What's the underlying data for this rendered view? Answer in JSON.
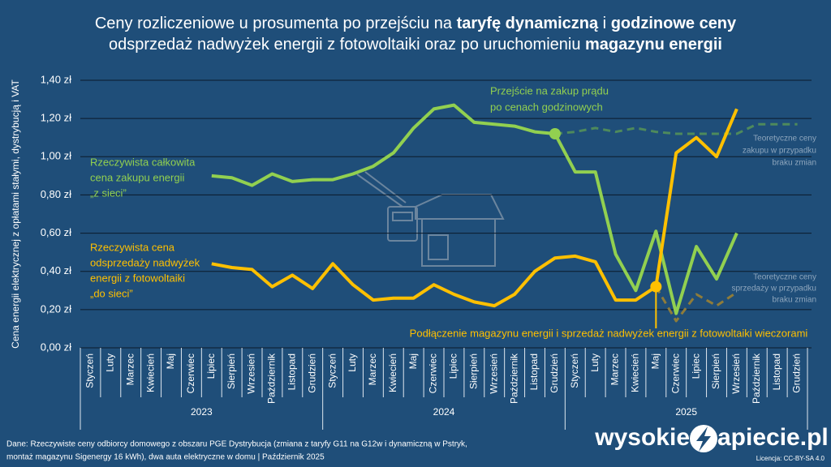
{
  "chart_data": {
    "type": "line",
    "title_lines": [
      [
        "Ceny rozliczeniowe u prosumenta po przejściu na ",
        "taryfę dynamiczną",
        " i ",
        "godzinowe ceny"
      ],
      [
        "odsprzedaż nadwyżek energii z fotowoltaiki oraz po uruchomieniu ",
        "magazynu energii"
      ]
    ],
    "y_label": "Cena energii elektrycznej z opłatami stałymi, dystrybucją i VAT",
    "categories": [
      "Styczeń",
      "Luty",
      "Marzec",
      "Kwiecień",
      "Maj",
      "Czerwiec",
      "Lipiec",
      "Sierpień",
      "Wrzesień",
      "Październik",
      "Listopad",
      "Grudzień",
      "Styczeń",
      "Luty",
      "Marzec",
      "Kwiecień",
      "Maj",
      "Czerwiec",
      "Lipiec",
      "Sierpień",
      "Wrzesień",
      "Październik",
      "Listopad",
      "Grudzień",
      "Styczeń",
      "Luty",
      "Marzec",
      "Kwiecień",
      "Maj",
      "Czerwiec",
      "Lipiec",
      "Sierpień",
      "Wrzesień",
      "Październik",
      "Listopad",
      "Grudzień"
    ],
    "years": [
      "2023",
      "2024",
      "2025"
    ],
    "ylim": [
      0,
      1.4
    ],
    "yticks": [
      {
        "value": 0,
        "label": "0,00 zł"
      },
      {
        "value": 0.2,
        "label": "0,20 zł"
      },
      {
        "value": 0.4,
        "label": "0,40 zł"
      },
      {
        "value": 0.6,
        "label": "0,60 zł"
      },
      {
        "value": 0.8,
        "label": "0,80 zł"
      },
      {
        "value": 1.0,
        "label": "1,00 zł"
      },
      {
        "value": 1.2,
        "label": "1,20 zł"
      },
      {
        "value": 1.4,
        "label": "1,40 zł"
      }
    ],
    "grid": true,
    "series": [
      {
        "color": "#92d050",
        "dashed": false,
        "values": [
          null,
          null,
          null,
          null,
          null,
          null,
          0.9,
          0.89,
          0.85,
          0.91,
          0.87,
          0.88,
          0.88,
          0.91,
          0.95,
          1.02,
          1.15,
          1.25,
          1.27,
          1.18,
          1.17,
          1.16,
          1.13,
          1.12,
          0.92,
          0.92,
          0.49,
          0.3,
          0.61,
          0.18,
          0.53,
          0.36,
          0.6,
          null,
          null,
          null
        ]
      },
      {
        "color": "#4e8a5c",
        "dashed": true,
        "values": [
          null,
          null,
          null,
          null,
          null,
          null,
          null,
          null,
          null,
          null,
          null,
          null,
          null,
          null,
          null,
          null,
          null,
          null,
          null,
          null,
          null,
          null,
          null,
          1.12,
          1.13,
          1.15,
          1.13,
          1.15,
          1.13,
          1.12,
          1.12,
          1.12,
          1.12,
          1.17,
          1.17,
          1.17
        ]
      },
      {
        "color": "#ffc000",
        "dashed": false,
        "values": [
          null,
          null,
          null,
          null,
          null,
          null,
          0.44,
          0.42,
          0.41,
          0.32,
          0.38,
          0.31,
          0.44,
          0.33,
          0.25,
          0.26,
          0.26,
          0.33,
          0.28,
          0.24,
          0.22,
          0.28,
          0.4,
          0.47,
          0.48,
          0.45,
          0.25,
          0.25,
          0.32,
          1.02,
          1.1,
          1.0,
          1.25,
          null,
          null,
          null
        ]
      },
      {
        "color": "#8f7c3a",
        "dashed": true,
        "values": [
          null,
          null,
          null,
          null,
          null,
          null,
          null,
          null,
          null,
          null,
          null,
          null,
          null,
          null,
          null,
          null,
          null,
          null,
          null,
          null,
          null,
          null,
          null,
          null,
          null,
          null,
          null,
          null,
          0.32,
          0.14,
          0.28,
          0.22,
          0.29,
          null,
          null,
          null
        ]
      }
    ],
    "annotations": [
      {
        "color": "#92d050",
        "lines": [
          "Rzeczywista całkowita",
          "cena zakupu energii",
          "„z sieci”"
        ]
      },
      {
        "color": "#ffc000",
        "lines": [
          "Rzeczywista cena",
          "odsprzedaży nadwyżek",
          "energii z fotowoltaiki",
          "„do sieci”"
        ]
      },
      {
        "color": "#92d050",
        "lines": [
          "Przejście na zakup prądu",
          "po cenach godzinowych"
        ]
      },
      {
        "color": "#ffc000",
        "lines": [
          "Podłączenie magazynu energii i sprzedaż nadwyżek energii z fotowoltaiki wieczorami"
        ]
      },
      {
        "color": "#8ea6bd",
        "lines": [
          "Teoretyczne ceny",
          "zakupu w przypadku",
          "braku zmian"
        ]
      },
      {
        "color": "#8ea6bd",
        "lines": [
          "Teoretyczne ceny",
          "sprzedaży w przypadku",
          "braku zmian"
        ]
      }
    ],
    "source_lines": [
      "Dane: Rzeczywiste ceny odbiorcy domowego z obszaru PGE Dystrybucja (zmiana z taryfy G11 na G12w i dynamiczną w Pstryk,",
      "montaż magazynu Sigenergy 16 kWh), dwa auta elektryczne w domu  |  Październik 2025"
    ],
    "logo_parts": [
      "wysokie",
      "apiecie.pl"
    ],
    "license": "Licencja: CC-BY-SA 4.0"
  }
}
